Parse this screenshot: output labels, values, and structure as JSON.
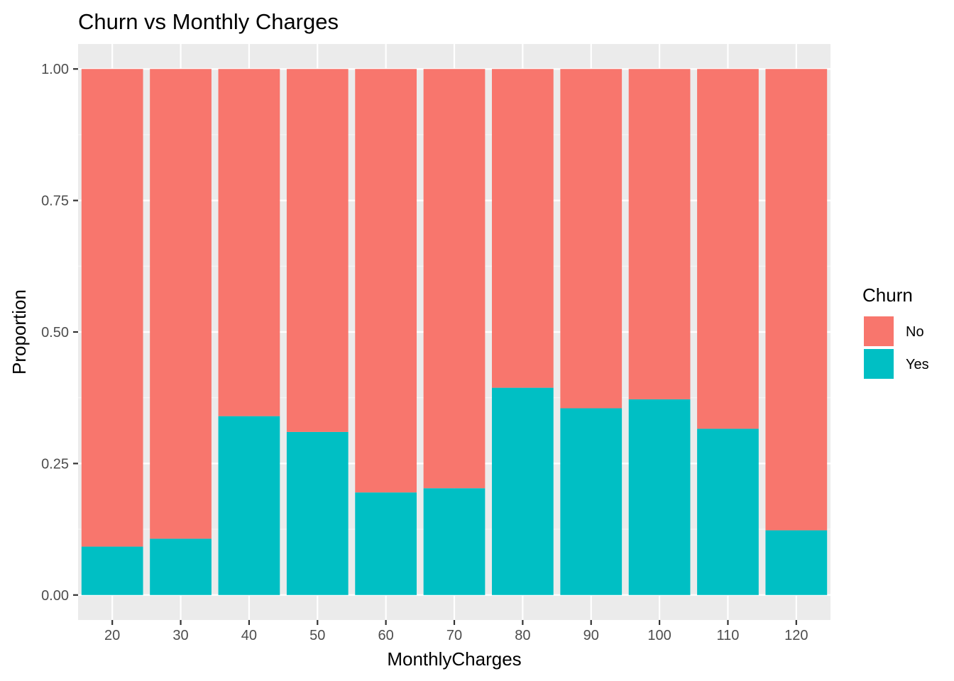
{
  "colors": {
    "panel_background": "#EBEBEB",
    "grid_major": "#FFFFFF",
    "grid_minor": "#F5F5F5",
    "tick": "#333333",
    "tick_label": "#4D4D4D",
    "text": "#000000",
    "series_no": "#F8766D",
    "series_yes": "#00BFC4"
  },
  "chart_data": {
    "type": "bar",
    "stacked": true,
    "title": "Churn vs Monthly Charges",
    "xlabel": "MonthlyCharges",
    "ylabel": "Proportion",
    "categories": [
      "20",
      "30",
      "40",
      "50",
      "60",
      "70",
      "80",
      "90",
      "100",
      "110",
      "120"
    ],
    "x_values": [
      20,
      30,
      40,
      50,
      60,
      70,
      80,
      90,
      100,
      110,
      120
    ],
    "xlim": [
      15,
      125
    ],
    "ylim": [
      -0.0475,
      1.0475
    ],
    "yticks": [
      0,
      0.25,
      0.5,
      0.75,
      1
    ],
    "ytick_labels": [
      "0.00",
      "0.25",
      "0.50",
      "0.75",
      "1.00"
    ],
    "grid": true,
    "legend": {
      "title": "Churn",
      "position": "right",
      "entries": [
        "No",
        "Yes"
      ]
    },
    "series": [
      {
        "name": "No",
        "values": [
          0.908,
          0.893,
          0.66,
          0.69,
          0.805,
          0.797,
          0.606,
          0.645,
          0.628,
          0.684,
          0.877
        ]
      },
      {
        "name": "Yes",
        "values": [
          0.092,
          0.107,
          0.34,
          0.31,
          0.195,
          0.203,
          0.394,
          0.355,
          0.372,
          0.316,
          0.123
        ]
      }
    ]
  }
}
